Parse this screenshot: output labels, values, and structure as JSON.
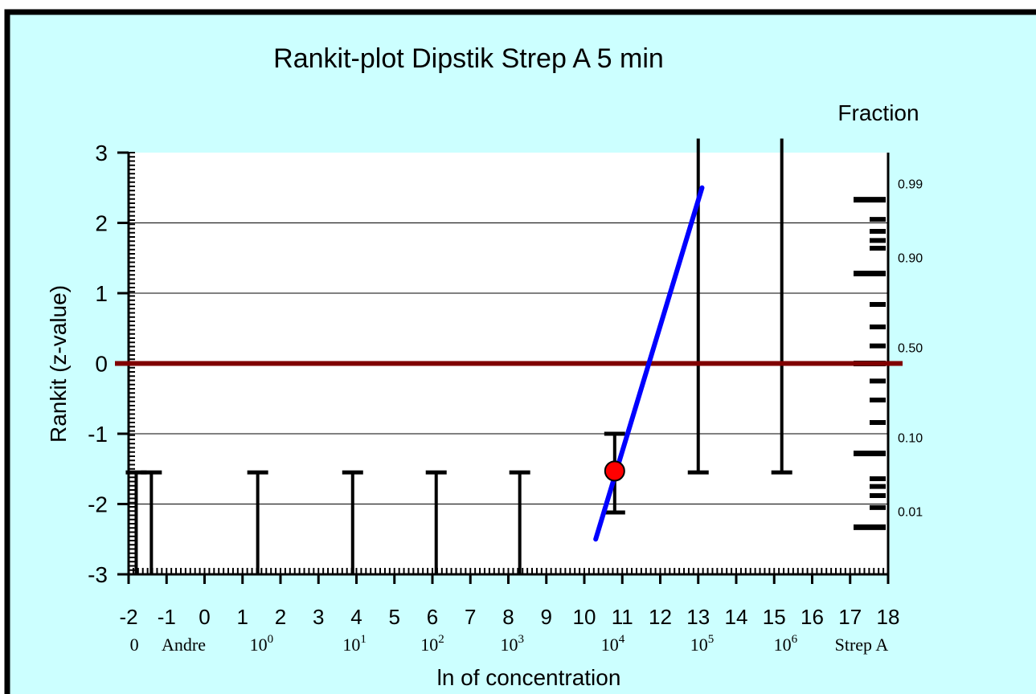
{
  "chart_data": {
    "type": "scatter",
    "title": "Rankit-plot Dipstik Strep A 5 min",
    "xlabel": "ln of concentration",
    "ylabel": "Rankit (z-value)",
    "right_axis_label": "Fraction",
    "xlim": [
      -2,
      18
    ],
    "ylim": [
      -3,
      3
    ],
    "grid": "horizontal",
    "x_ticks": [
      "-2",
      "-1",
      "0",
      "1",
      "2",
      "3",
      "4",
      "5",
      "6",
      "7",
      "8",
      "9",
      "10",
      "11",
      "12",
      "13",
      "14",
      "15",
      "16",
      "17",
      "18"
    ],
    "y_ticks": [
      "3",
      "2",
      "1",
      "0",
      "-1",
      "-2",
      "-3"
    ],
    "concentration_labels": [
      {
        "x": -1.85,
        "text": "0"
      },
      {
        "x": -0.55,
        "text": "Andre"
      },
      {
        "x": 1.5,
        "base": "10",
        "exp": "0"
      },
      {
        "x": 3.95,
        "base": "10",
        "exp": "1"
      },
      {
        "x": 6.0,
        "base": "10",
        "exp": "2"
      },
      {
        "x": 8.1,
        "base": "10",
        "exp": "3"
      },
      {
        "x": 10.75,
        "base": "10",
        "exp": "4"
      },
      {
        "x": 13.1,
        "base": "10",
        "exp": "5"
      },
      {
        "x": 15.3,
        "base": "10",
        "exp": "6"
      },
      {
        "x": 17.3,
        "text": "Strep A"
      }
    ],
    "fraction_ticks": [
      {
        "z": 2.33,
        "label": "0.99"
      },
      {
        "z": 1.28,
        "label": "0.90"
      },
      {
        "z": 0.0,
        "label": "0.50"
      },
      {
        "z": -1.28,
        "label": "0.10"
      },
      {
        "z": -2.33,
        "label": "0.01"
      }
    ],
    "fraction_minor_z": [
      2.05,
      1.88,
      1.75,
      1.64,
      0.84,
      0.52,
      0.25,
      -0.25,
      -0.52,
      -0.84,
      -1.64,
      -1.75,
      -1.88,
      -2.05
    ],
    "error_bars": [
      {
        "x": -1.8,
        "y_low": -3.0,
        "y_high": -1.55
      },
      {
        "x": -1.4,
        "y_low": -3.0,
        "y_high": -1.55
      },
      {
        "x": 1.4,
        "y_low": -3.0,
        "y_high": -1.55
      },
      {
        "x": 3.9,
        "y_low": -3.0,
        "y_high": -1.55
      },
      {
        "x": 6.1,
        "y_low": -3.0,
        "y_high": -1.55
      },
      {
        "x": 8.3,
        "y_low": -3.0,
        "y_high": -1.55
      },
      {
        "x": 10.8,
        "y_low": -2.12,
        "y_high": -1.0
      },
      {
        "x": 13.0,
        "y_low": -1.55,
        "y_high": 3.2
      },
      {
        "x": 15.2,
        "y_low": -1.55,
        "y_high": 3.2
      }
    ],
    "points": [
      {
        "x": 10.8,
        "y": -1.53
      }
    ],
    "fit_line": [
      {
        "x": 10.3,
        "y": -2.5
      },
      {
        "x": 13.1,
        "y": 2.5
      }
    ],
    "reference_line_y": 0,
    "colors": {
      "background": "#ccffff",
      "plot_area": "#ffffff",
      "fit_line": "#0000ff",
      "reference_line": "#800000",
      "point": "#ff0000",
      "bars": "#000000"
    }
  }
}
